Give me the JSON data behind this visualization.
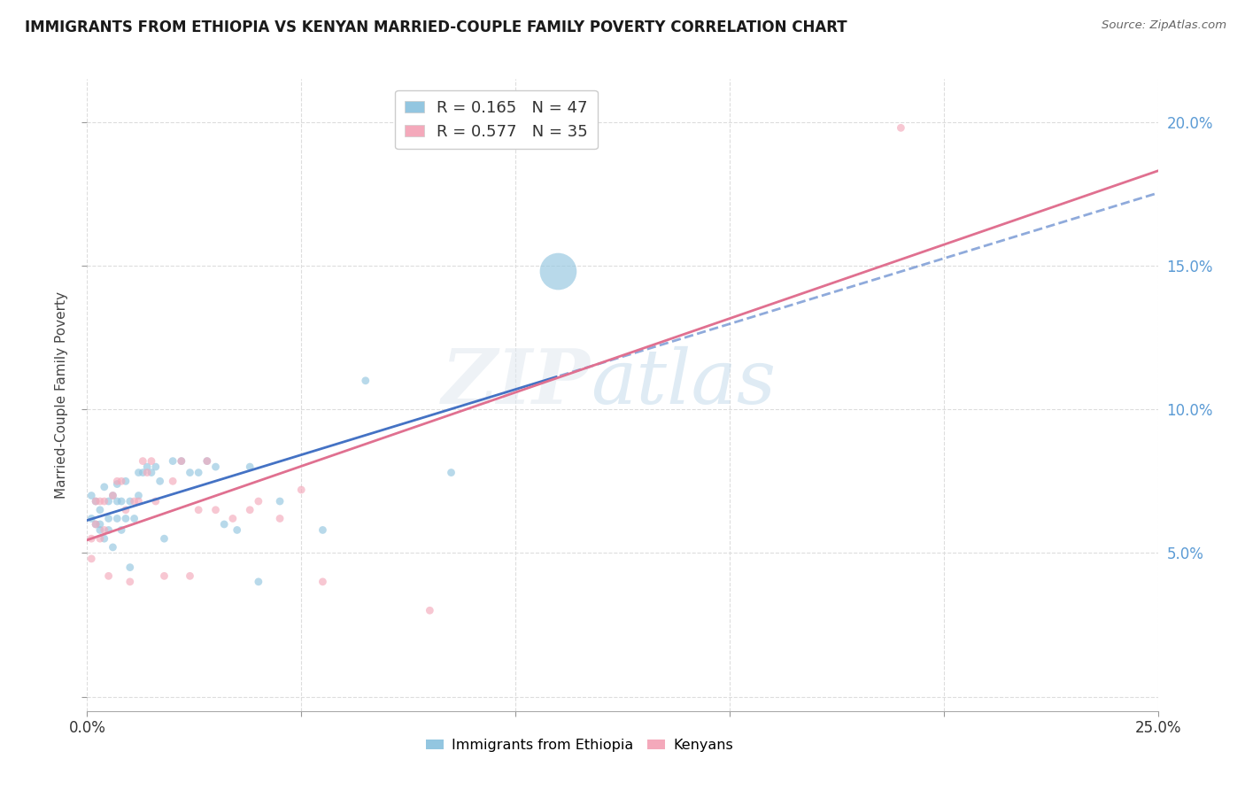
{
  "title": "IMMIGRANTS FROM ETHIOPIA VS KENYAN MARRIED-COUPLE FAMILY POVERTY CORRELATION CHART",
  "source": "Source: ZipAtlas.com",
  "ylabel": "Married-Couple Family Poverty",
  "xlim": [
    0.0,
    0.25
  ],
  "ylim": [
    -0.005,
    0.215
  ],
  "xticks": [
    0.0,
    0.05,
    0.1,
    0.15,
    0.2,
    0.25
  ],
  "xticklabels_edge_only": true,
  "yticks": [
    0.0,
    0.05,
    0.1,
    0.15,
    0.2
  ],
  "right_yticklabels": [
    "5.0%",
    "10.0%",
    "15.0%",
    "20.0%"
  ],
  "legend_ethiopia": "Immigrants from Ethiopia",
  "legend_kenyan": "Kenyans",
  "R_ethiopia": 0.165,
  "N_ethiopia": 47,
  "R_kenyan": 0.577,
  "N_kenyan": 35,
  "ethiopia_color": "#93c6e0",
  "kenyan_color": "#f4a9bb",
  "ethiopia_line_color": "#4472c4",
  "kenyan_line_color": "#e07090",
  "watermark_zip": "ZIP",
  "watermark_atlas": "atlas",
  "ethiopia_x": [
    0.001,
    0.001,
    0.002,
    0.002,
    0.003,
    0.003,
    0.003,
    0.004,
    0.004,
    0.005,
    0.005,
    0.005,
    0.006,
    0.006,
    0.007,
    0.007,
    0.007,
    0.008,
    0.008,
    0.009,
    0.009,
    0.01,
    0.01,
    0.011,
    0.012,
    0.012,
    0.013,
    0.014,
    0.015,
    0.016,
    0.017,
    0.018,
    0.02,
    0.022,
    0.024,
    0.026,
    0.028,
    0.03,
    0.032,
    0.035,
    0.038,
    0.04,
    0.045,
    0.055,
    0.065,
    0.085,
    0.11
  ],
  "ethiopia_y": [
    0.07,
    0.062,
    0.068,
    0.06,
    0.058,
    0.065,
    0.06,
    0.073,
    0.055,
    0.068,
    0.062,
    0.058,
    0.07,
    0.052,
    0.074,
    0.068,
    0.062,
    0.068,
    0.058,
    0.075,
    0.062,
    0.068,
    0.045,
    0.062,
    0.078,
    0.07,
    0.078,
    0.08,
    0.078,
    0.08,
    0.075,
    0.055,
    0.082,
    0.082,
    0.078,
    0.078,
    0.082,
    0.08,
    0.06,
    0.058,
    0.08,
    0.04,
    0.068,
    0.058,
    0.11,
    0.078,
    0.148
  ],
  "ethiopia_sizes": [
    40,
    40,
    40,
    40,
    40,
    40,
    40,
    40,
    40,
    40,
    40,
    40,
    40,
    40,
    40,
    40,
    40,
    40,
    40,
    40,
    40,
    40,
    40,
    40,
    40,
    40,
    40,
    40,
    40,
    40,
    40,
    40,
    40,
    40,
    40,
    40,
    40,
    40,
    40,
    40,
    40,
    40,
    40,
    40,
    40,
    40,
    900
  ],
  "kenyan_x": [
    0.001,
    0.001,
    0.002,
    0.002,
    0.003,
    0.003,
    0.004,
    0.004,
    0.005,
    0.006,
    0.007,
    0.008,
    0.009,
    0.01,
    0.011,
    0.012,
    0.013,
    0.014,
    0.015,
    0.016,
    0.018,
    0.02,
    0.022,
    0.024,
    0.026,
    0.028,
    0.03,
    0.034,
    0.038,
    0.04,
    0.045,
    0.05,
    0.055,
    0.08,
    0.19
  ],
  "kenyan_y": [
    0.055,
    0.048,
    0.06,
    0.068,
    0.055,
    0.068,
    0.068,
    0.058,
    0.042,
    0.07,
    0.075,
    0.075,
    0.065,
    0.04,
    0.068,
    0.068,
    0.082,
    0.078,
    0.082,
    0.068,
    0.042,
    0.075,
    0.082,
    0.042,
    0.065,
    0.082,
    0.065,
    0.062,
    0.065,
    0.068,
    0.062,
    0.072,
    0.04,
    0.03,
    0.198
  ],
  "kenyan_sizes": [
    40,
    40,
    40,
    40,
    40,
    40,
    40,
    40,
    40,
    40,
    40,
    40,
    40,
    40,
    40,
    40,
    40,
    40,
    40,
    40,
    40,
    40,
    40,
    40,
    40,
    40,
    40,
    40,
    40,
    40,
    40,
    40,
    40,
    40,
    40
  ]
}
